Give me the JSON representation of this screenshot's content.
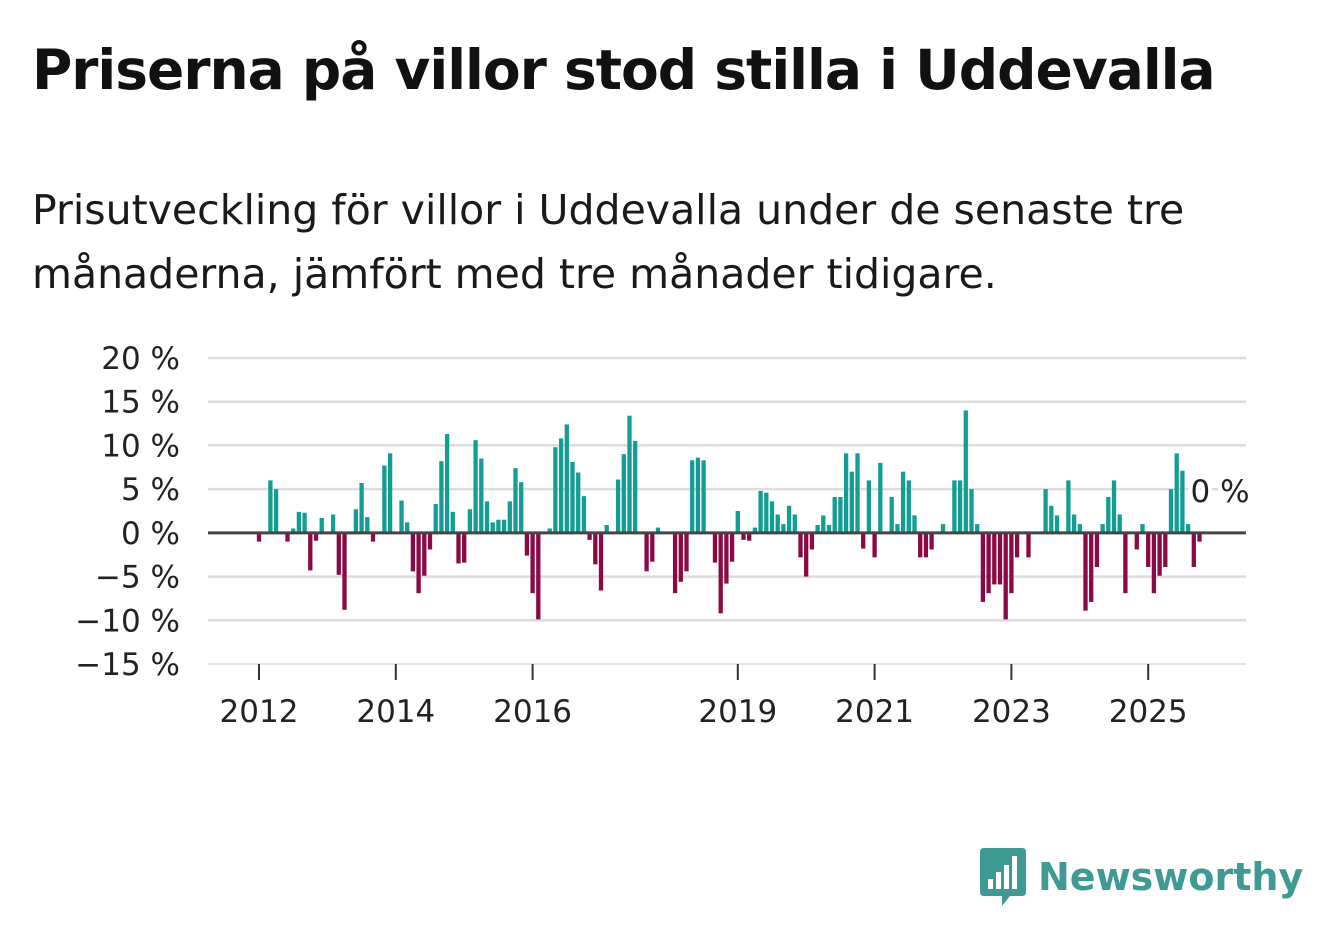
{
  "title": "Priserna på villor stod stilla i Uddevalla",
  "subtitle": "Prisutveckling för villor i Uddevalla under de senaste tre månaderna, jämfört med tre månader tidigare.",
  "logo": {
    "icon": "newsworthy-bar-chart-icon",
    "text": "Newsworthy"
  },
  "colors": {
    "positive": "#139e94",
    "negative": "#8b0a45",
    "grid": "#dddddd",
    "zero_line": "#444444",
    "title": "#111111",
    "logo": "#3f9a94"
  },
  "chart_data": {
    "type": "bar",
    "title": "",
    "xlabel": "",
    "ylabel": "",
    "ylim": [
      -15,
      20
    ],
    "yticks": [
      20,
      15,
      10,
      5,
      0,
      -5,
      -10,
      -15
    ],
    "ytick_labels": [
      "20 %",
      "15 %",
      "10 %",
      "5 %",
      "0 %",
      "−5 %",
      "−10 %",
      "−15 %"
    ],
    "xticks": [
      {
        "label": "2012",
        "index": 0
      },
      {
        "label": "2014",
        "index": 24
      },
      {
        "label": "2016",
        "index": 48
      },
      {
        "label": "2019",
        "index": 84
      },
      {
        "label": "2021",
        "index": 108
      },
      {
        "label": "2023",
        "index": 132
      },
      {
        "label": "2025",
        "index": 156
      }
    ],
    "start": "2012-01",
    "frequency": "monthly",
    "annotation": {
      "text": "0 %",
      "index": 165,
      "value": 0
    },
    "values": [
      -1,
      0,
      6,
      5,
      0,
      -1,
      0.5,
      2.4,
      2.3,
      -4.3,
      -0.9,
      1.7,
      0,
      2.1,
      -4.8,
      -8.8,
      0,
      2.7,
      5.7,
      1.8,
      -1,
      0,
      7.7,
      9.1,
      0,
      3.7,
      1.2,
      -4.4,
      -6.9,
      -4.9,
      -1.9,
      3.3,
      8.2,
      11.3,
      2.4,
      -3.5,
      -3.4,
      2.7,
      10.6,
      8.5,
      3.6,
      1.2,
      1.5,
      1.5,
      3.6,
      7.4,
      5.8,
      -2.6,
      -6.9,
      -9.9,
      0,
      0.5,
      9.8,
      10.8,
      12.4,
      8.1,
      6.9,
      4.2,
      -0.8,
      -3.6,
      -6.6,
      0.9,
      0,
      6.1,
      9,
      13.4,
      10.5,
      0,
      -4.4,
      -3.3,
      0.6,
      0,
      0,
      -6.9,
      -5.6,
      -4.4,
      8.3,
      8.6,
      8.3,
      0,
      -3.4,
      -9.2,
      -5.8,
      -3.3,
      2.5,
      -0.8,
      -0.9,
      0.6,
      4.8,
      4.6,
      3.6,
      2.1,
      1,
      3.1,
      2.1,
      -2.8,
      -5,
      -1.9,
      0.9,
      2,
      0.9,
      4.1,
      4.1,
      9.1,
      7,
      9.1,
      -1.8,
      6,
      -2.8,
      8,
      0,
      4.1,
      1,
      7,
      6,
      2,
      -2.8,
      -2.8,
      -1.9,
      0,
      1,
      0,
      6,
      6,
      14,
      5,
      1,
      -7.9,
      -6.9,
      -5.9,
      -5.9,
      -9.9,
      -6.9,
      -2.8,
      0,
      -2.8,
      0,
      0,
      5,
      3.1,
      2,
      0,
      6,
      2.1,
      1,
      -8.9,
      -7.9,
      -3.9,
      1,
      4.1,
      6,
      2.1,
      -6.9,
      0,
      -1.9,
      1,
      -3.9,
      -6.9,
      -4.9,
      -3.9,
      5,
      9.1,
      7.1,
      1,
      -3.9,
      -1,
      0
    ]
  }
}
